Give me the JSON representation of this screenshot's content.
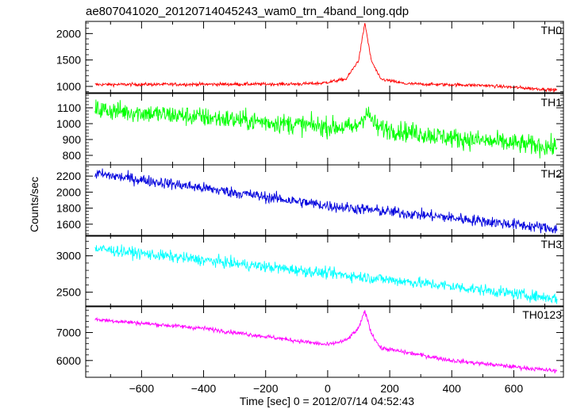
{
  "title": "ae807041020_20120714045243_wam0_trn_4band_long.qdp",
  "xlabel": "Time [sec] 0 = 2012/07/14 04:52:43",
  "ylabel": "Counts/sec",
  "chart_data": {
    "type": "line",
    "title": "ae807041020_20120714045243_wam0_trn_4band_long.qdp",
    "xlabel": "Time [sec] 0 = 2012/07/14 04:52:43",
    "ylabel": "Counts/sec",
    "xlim": [
      -780,
      760
    ],
    "x_ticks": [
      -600,
      -400,
      -200,
      0,
      200,
      400,
      600
    ],
    "x_tick_labels": [
      "−600",
      "−400",
      "−200",
      "0",
      "200",
      "400",
      "600"
    ],
    "grid": false,
    "legend": "none",
    "panels": [
      {
        "name": "TH0",
        "color": "#ff0000",
        "ylim": [
          880,
          2230
        ],
        "y_ticks": [
          1000,
          1500,
          2000
        ],
        "y_tick_labels": [
          "1000",
          "1500",
          "2000"
        ],
        "baseline": [
          [
            -750,
            1035
          ],
          [
            -400,
            1040
          ],
          [
            -100,
            1045
          ],
          [
            -20,
            1060
          ],
          [
            60,
            1140
          ],
          [
            100,
            1500
          ],
          [
            120,
            2200
          ],
          [
            140,
            1500
          ],
          [
            170,
            1140
          ],
          [
            250,
            1050
          ],
          [
            500,
            1020
          ],
          [
            740,
            930
          ]
        ],
        "noise": 22
      },
      {
        "name": "TH1",
        "color": "#00ff00",
        "ylim": [
          740,
          1190
        ],
        "y_ticks": [
          800,
          900,
          1000,
          1100
        ],
        "y_tick_labels": [
          "800",
          "900",
          "1000",
          "1100"
        ],
        "baseline": [
          [
            -750,
            1090
          ],
          [
            -400,
            1040
          ],
          [
            0,
            980
          ],
          [
            90,
            975
          ],
          [
            125,
            1070
          ],
          [
            160,
            975
          ],
          [
            400,
            910
          ],
          [
            740,
            850
          ]
        ],
        "noise": 45
      },
      {
        "name": "TH2",
        "color": "#0000dd",
        "ylim": [
          1450,
          2340
        ],
        "y_ticks": [
          1600,
          1800,
          2000,
          2200
        ],
        "y_tick_labels": [
          "1600",
          "1800",
          "2000",
          "2200"
        ],
        "baseline": [
          [
            -750,
            2230
          ],
          [
            -400,
            2050
          ],
          [
            0,
            1830
          ],
          [
            400,
            1680
          ],
          [
            740,
            1540
          ]
        ],
        "noise": 50
      },
      {
        "name": "TH3",
        "color": "#00ffff",
        "ylim": [
          2300,
          3280
        ],
        "y_ticks": [
          2500,
          3000
        ],
        "y_tick_labels": [
          "2500",
          "3000"
        ],
        "baseline": [
          [
            -750,
            3100
          ],
          [
            -400,
            2940
          ],
          [
            0,
            2760
          ],
          [
            400,
            2580
          ],
          [
            740,
            2410
          ]
        ],
        "noise": 55
      },
      {
        "name": "TH0123",
        "color": "#ff00ff",
        "ylim": [
          5400,
          7950
        ],
        "y_ticks": [
          6000,
          7000
        ],
        "y_tick_labels": [
          "6000",
          "7000"
        ],
        "baseline": [
          [
            -750,
            7470
          ],
          [
            -400,
            7150
          ],
          [
            0,
            6560
          ],
          [
            60,
            6720
          ],
          [
            100,
            7150
          ],
          [
            120,
            7780
          ],
          [
            140,
            7000
          ],
          [
            170,
            6450
          ],
          [
            400,
            6000
          ],
          [
            740,
            5620
          ]
        ],
        "noise": 55
      }
    ]
  }
}
